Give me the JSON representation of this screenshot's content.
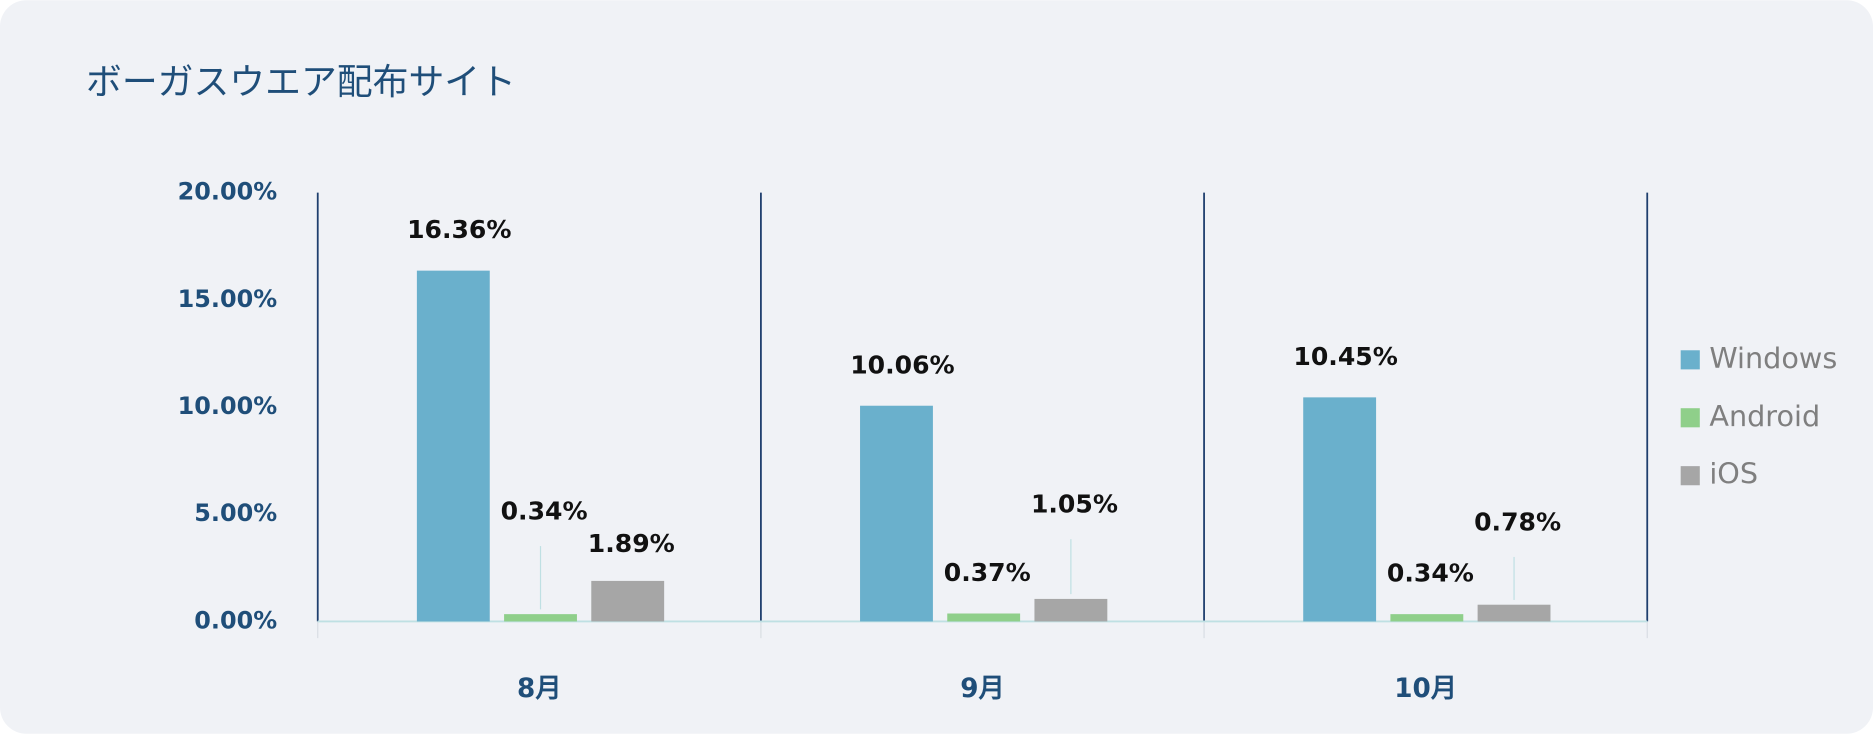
{
  "chart_data": {
    "type": "bar",
    "title": "ボーガスウエア配布サイト",
    "categories": [
      "8月",
      "9月",
      "10月"
    ],
    "series": [
      {
        "name": "Windows",
        "color": "#6ab0cc",
        "values": [
          16.36,
          10.06,
          10.45
        ],
        "value_labels": [
          "16.36%",
          "10.06%",
          "10.45%"
        ]
      },
      {
        "name": "Android",
        "color": "#8fcf8a",
        "values": [
          0.34,
          0.37,
          0.34
        ],
        "value_labels": [
          "0.34%",
          "0.37%",
          "0.34%"
        ]
      },
      {
        "name": "iOS",
        "color": "#a6a6a6",
        "values": [
          1.89,
          1.05,
          0.78
        ],
        "value_labels": [
          "1.89%",
          "1.05%",
          "0.78%"
        ]
      }
    ],
    "ylim": [
      0,
      20
    ],
    "yticks": [
      {
        "value": 0,
        "label": "0.00%"
      },
      {
        "value": 5,
        "label": "5.00%"
      },
      {
        "value": 10,
        "label": "10.00%"
      },
      {
        "value": 15,
        "label": "15.00%"
      },
      {
        "value": 20,
        "label": "20.00%"
      }
    ],
    "legend": "right"
  }
}
